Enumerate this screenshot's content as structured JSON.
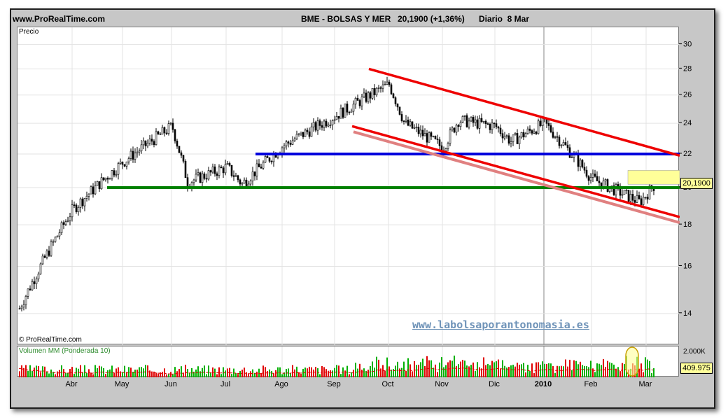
{
  "header": {
    "site": "www.ProRealTime.com",
    "instrument": "BME - BOLSAS Y MER",
    "quote": "20,1900 (+1,36%)",
    "period": "Diario  8 Mar"
  },
  "panel_labels": {
    "price": "Precio",
    "copyright": "© ProRealTime.com",
    "watermark": "www.labolsaporantonomasia.es",
    "volume": "Volumen MM (Ponderada 10)"
  },
  "tags": {
    "last_price": "20,1900",
    "last_volume": "409.975"
  },
  "colors": {
    "up": "#00b000",
    "down": "#e00000",
    "support": "#008000",
    "resistance": "#0000dd",
    "channel": "#ee0000",
    "channel_shadow": "#e08080",
    "highlight": "#ffff99"
  },
  "chart_data": [
    {
      "type": "candlestick",
      "title": "BME - BOLSAS Y MER",
      "ylabel": "Precio",
      "ylim": [
        12.8,
        31.5
      ],
      "y_scale": "log",
      "yticks": [
        "14",
        "16",
        "18",
        "20",
        "22",
        "24",
        "26",
        "28",
        "30"
      ],
      "x_labels": [
        "Abr",
        "May",
        "Jun",
        "Jul",
        "Ago",
        "Sep",
        "Oct",
        "Nov",
        "Dic",
        "2010",
        "Feb",
        "Mar"
      ],
      "grid": true,
      "price_path": [
        [
          "Mar",
          14.2
        ],
        [
          "Abr",
          18.8
        ],
        [
          "May",
          21.5
        ],
        [
          "Jun",
          23.8
        ],
        [
          "Jun",
          20.3
        ],
        [
          "Jul",
          21.2
        ],
        [
          "Jul",
          20.2
        ],
        [
          "Ago",
          22.5
        ],
        [
          "Sep",
          24.5
        ],
        [
          "Oct",
          26.8
        ],
        [
          "Oct",
          24.0
        ],
        [
          "Nov",
          22.4
        ],
        [
          "Nov",
          24.2
        ],
        [
          "Dic",
          23.8
        ],
        [
          "Dic",
          22.8
        ],
        [
          "2010",
          24.0
        ],
        [
          "Feb",
          20.5
        ],
        [
          "Mar",
          19.2
        ],
        [
          "Mar",
          20.19
        ]
      ],
      "lines": [
        {
          "name": "support",
          "y": 20.0,
          "from": "May",
          "to": "Mar"
        },
        {
          "name": "resistance",
          "y": 22.0,
          "from": "Jul",
          "to": "Mar"
        },
        {
          "name": "upper-channel",
          "from": [
            "Oct",
            28.0
          ],
          "to": [
            "Mar",
            21.9
          ]
        },
        {
          "name": "lower-channel",
          "from": [
            "Sep",
            23.8
          ],
          "to": [
            "Mar",
            18.4
          ]
        }
      ],
      "last": 20.19,
      "change_pct": 1.36
    },
    {
      "type": "bar",
      "title": "Volumen MM (Ponderada 10)",
      "ylim": [
        0,
        2000000
      ],
      "yticks": [
        "2.000K"
      ],
      "last": 409975
    }
  ]
}
